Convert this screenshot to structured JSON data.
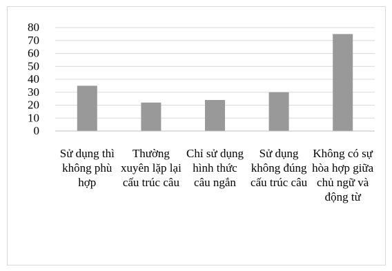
{
  "chart_data": {
    "type": "bar",
    "title": "",
    "xlabel": "",
    "ylabel": "",
    "ylim": [
      0,
      80
    ],
    "yticks": [
      0,
      10,
      20,
      30,
      40,
      50,
      60,
      70,
      80
    ],
    "grid": true,
    "legend": "none",
    "bar_color": "#999999",
    "categories": [
      "Sử dụng thì không phù hợp",
      "Thường xuyên lặp lại cấu trúc câu",
      "Chỉ sử dụng hình thức câu ngắn",
      "Sử dụng không đúng cấu trúc câu",
      "Không có sự hòa hợp giữa chủ ngữ và động từ"
    ],
    "values": [
      35,
      22,
      24,
      30,
      75
    ]
  }
}
